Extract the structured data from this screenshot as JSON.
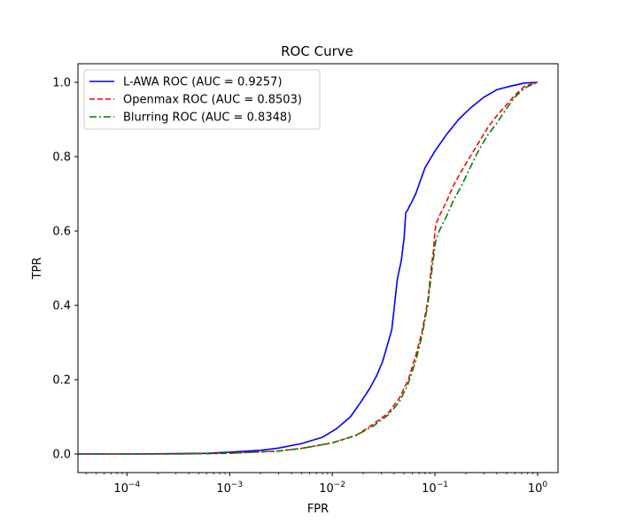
{
  "chart_data": {
    "type": "line",
    "title": "ROC Curve",
    "xlabel": "FPR",
    "ylabel": "TPR",
    "xscale": "log",
    "xlim": [
      3.33e-05,
      1.58
    ],
    "ylim": [
      -0.05,
      1.05
    ],
    "grid": false,
    "legend_position": "top-left",
    "x_ticks": [
      {
        "value": 0.0001,
        "base": "10",
        "exp": "−4"
      },
      {
        "value": 0.001,
        "base": "10",
        "exp": "−3"
      },
      {
        "value": 0.01,
        "base": "10",
        "exp": "−2"
      },
      {
        "value": 0.1,
        "base": "10",
        "exp": "−1"
      },
      {
        "value": 1,
        "base": "10",
        "exp": "0"
      }
    ],
    "y_ticks": [
      {
        "value": 0.0,
        "label": "0.0"
      },
      {
        "value": 0.2,
        "label": "0.2"
      },
      {
        "value": 0.4,
        "label": "0.4"
      },
      {
        "value": 0.6,
        "label": "0.6"
      },
      {
        "value": 0.8,
        "label": "0.8"
      },
      {
        "value": 1.0,
        "label": "1.0"
      }
    ],
    "series": [
      {
        "name": "L-AWA ROC (AUC = 0.9257)",
        "color": "#0000ff",
        "dash": "solid",
        "x": [
          3.33e-05,
          0.0001,
          0.0003,
          0.0006,
          0.001,
          0.002,
          0.003,
          0.005,
          0.008,
          0.011,
          0.015,
          0.019,
          0.023,
          0.027,
          0.031,
          0.035,
          0.038,
          0.043,
          0.047,
          0.05,
          0.052,
          0.054,
          0.056,
          0.06,
          0.065,
          0.07,
          0.08,
          0.1,
          0.13,
          0.17,
          0.22,
          0.3,
          0.4,
          0.55,
          0.75,
          1.0
        ],
        "y": [
          0.0,
          0.0,
          0.001,
          0.002,
          0.005,
          0.01,
          0.016,
          0.028,
          0.045,
          0.068,
          0.1,
          0.14,
          0.175,
          0.21,
          0.25,
          0.3,
          0.335,
          0.47,
          0.52,
          0.58,
          0.65,
          0.655,
          0.665,
          0.68,
          0.7,
          0.725,
          0.77,
          0.815,
          0.86,
          0.9,
          0.93,
          0.96,
          0.98,
          0.99,
          0.998,
          1.0
        ]
      },
      {
        "name": "Openmax ROC (AUC = 0.8503)",
        "color": "#ff0000",
        "dash": "dashed",
        "x": [
          3.33e-05,
          0.0001,
          0.0003,
          0.001,
          0.003,
          0.005,
          0.01,
          0.017,
          0.025,
          0.035,
          0.045,
          0.055,
          0.065,
          0.075,
          0.085,
          0.092,
          0.097,
          0.1,
          0.103,
          0.11,
          0.13,
          0.15,
          0.18,
          0.22,
          0.27,
          0.33,
          0.4,
          0.5,
          0.6,
          0.75,
          1.0
        ],
        "y": [
          0.0,
          0.0,
          0.0,
          0.002,
          0.008,
          0.015,
          0.03,
          0.05,
          0.08,
          0.11,
          0.15,
          0.2,
          0.265,
          0.33,
          0.41,
          0.5,
          0.55,
          0.6,
          0.62,
          0.64,
          0.68,
          0.72,
          0.76,
          0.8,
          0.84,
          0.88,
          0.91,
          0.94,
          0.965,
          0.99,
          1.0
        ]
      },
      {
        "name": "Blurring ROC (AUC = 0.8348)",
        "color": "#008000",
        "dash": "dashdot",
        "x": [
          3.33e-05,
          0.0001,
          0.0003,
          0.001,
          0.003,
          0.005,
          0.01,
          0.017,
          0.025,
          0.035,
          0.045,
          0.055,
          0.065,
          0.075,
          0.085,
          0.092,
          0.097,
          0.1,
          0.103,
          0.11,
          0.13,
          0.15,
          0.18,
          0.22,
          0.27,
          0.33,
          0.4,
          0.5,
          0.6,
          0.75,
          1.0
        ],
        "y": [
          0.0,
          0.0,
          0.0,
          0.002,
          0.008,
          0.015,
          0.03,
          0.05,
          0.075,
          0.105,
          0.14,
          0.19,
          0.25,
          0.32,
          0.4,
          0.48,
          0.53,
          0.56,
          0.58,
          0.6,
          0.64,
          0.68,
          0.72,
          0.77,
          0.82,
          0.86,
          0.89,
          0.93,
          0.96,
          0.985,
          1.0
        ]
      }
    ]
  }
}
